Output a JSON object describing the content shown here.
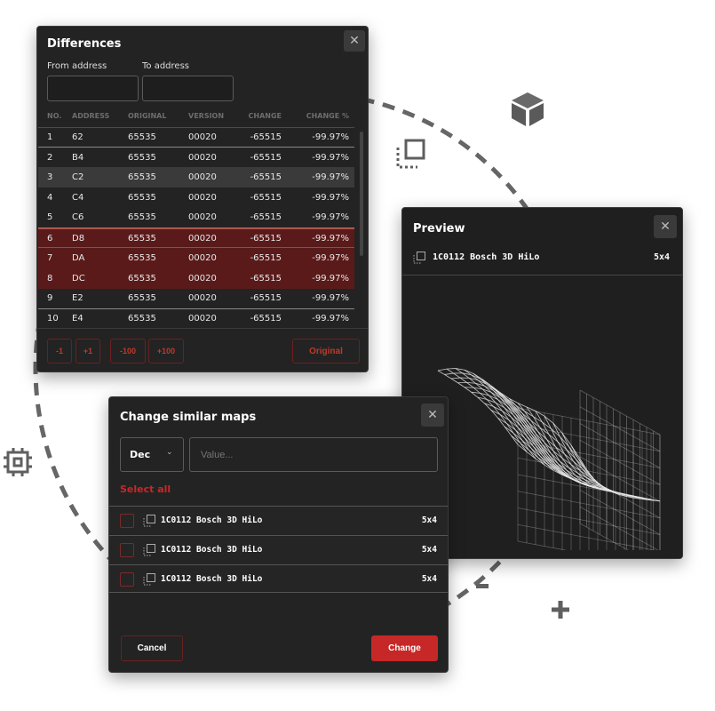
{
  "differences": {
    "title": "Differences",
    "from_label": "From address",
    "to_label": "To address",
    "from_value": "",
    "to_value": "",
    "columns": [
      "NO.",
      "ADDRESS",
      "ORIGINAL",
      "VERSION",
      "CHANGE",
      "CHANGE %"
    ],
    "rows": [
      [
        "1",
        "62",
        "65535",
        "00020",
        "-65515",
        "-99.97%"
      ],
      [
        "2",
        "B4",
        "65535",
        "00020",
        "-65515",
        "-99.97%"
      ],
      [
        "3",
        "C2",
        "65535",
        "00020",
        "-65515",
        "-99.97%"
      ],
      [
        "4",
        "C4",
        "65535",
        "00020",
        "-65515",
        "-99.97%"
      ],
      [
        "5",
        "C6",
        "65535",
        "00020",
        "-65515",
        "-99.97%"
      ],
      [
        "6",
        "D8",
        "65535",
        "00020",
        "-65515",
        "-99.97%"
      ],
      [
        "7",
        "DA",
        "65535",
        "00020",
        "-65515",
        "-99.97%"
      ],
      [
        "8",
        "DC",
        "65535",
        "00020",
        "-65515",
        "-99.97%"
      ],
      [
        "9",
        "E2",
        "65535",
        "00020",
        "-65515",
        "-99.97%"
      ],
      [
        "10",
        "E4",
        "65535",
        "00020",
        "-65515",
        "-99.97%"
      ]
    ],
    "buttons": {
      "minus1": "-1",
      "plus1": "+1",
      "minus100": "-100",
      "plus100": "+100",
      "original": "Original"
    }
  },
  "preview": {
    "title": "Preview",
    "map_name": "1C0112 Bosch 3D HiLo",
    "map_size": "5x4"
  },
  "change_maps": {
    "title": "Change similar maps",
    "format": "Dec",
    "value_placeholder": "Value...",
    "select_all": "Select all",
    "maps": [
      {
        "name": "1C0112 Bosch 3D HiLo",
        "size": "5x4",
        "checked": false
      },
      {
        "name": "1C0112 Bosch 3D HiLo",
        "size": "5x4",
        "checked": false
      },
      {
        "name": "1C0112 Bosch 3D HiLo",
        "size": "5x4",
        "checked": false
      }
    ],
    "cancel": "Cancel",
    "change": "Change"
  },
  "colors": {
    "accent": "#c62828",
    "panel": "#232323",
    "decor": "#5f5f5f"
  }
}
